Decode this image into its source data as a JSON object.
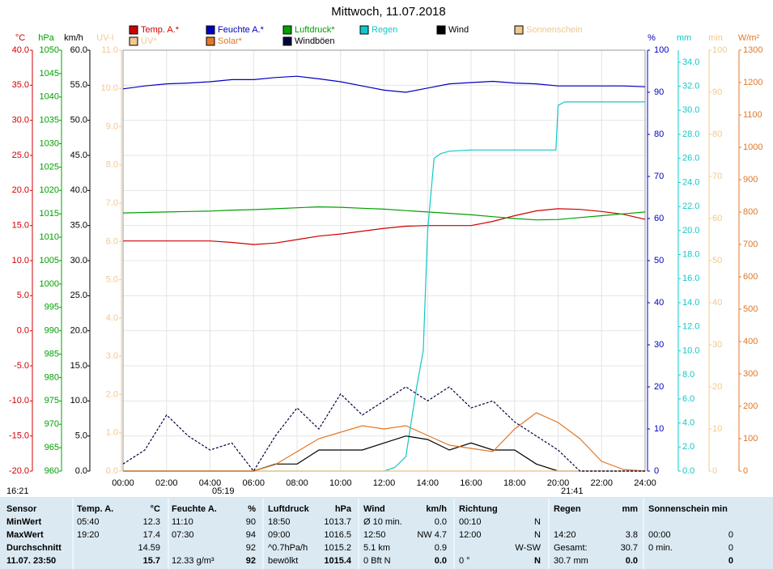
{
  "chart_data": {
    "type": "line",
    "title": "Mittwoch, 11.07.2018",
    "xlim": [
      0,
      24
    ],
    "xticks": [
      {
        "value": 0,
        "label": "00:00"
      },
      {
        "value": 2,
        "label": "02:00"
      },
      {
        "value": 4,
        "label": "04:00"
      },
      {
        "value": 6,
        "label": "06:00"
      },
      {
        "value": 8,
        "label": "08:00"
      },
      {
        "value": 10,
        "label": "10:00"
      },
      {
        "value": 12,
        "label": "12:00"
      },
      {
        "value": 14,
        "label": "14:00"
      },
      {
        "value": 16,
        "label": "16:00"
      },
      {
        "value": 18,
        "label": "18:00"
      },
      {
        "value": 20,
        "label": "20:00"
      },
      {
        "value": 22,
        "label": "22:00"
      },
      {
        "value": 24,
        "label": "24:00"
      }
    ],
    "grid": true,
    "axes": [
      {
        "label": "°C",
        "color": "#d00000",
        "lim": [
          -20,
          40
        ],
        "ticks": [
          {
            "value": 40,
            "label": "40.0"
          },
          {
            "value": 35,
            "label": "35.0"
          },
          {
            "value": 30,
            "label": "30.0"
          },
          {
            "value": 25,
            "label": "25.0"
          },
          {
            "value": 20,
            "label": "20.0"
          },
          {
            "value": 15,
            "label": "15.0"
          },
          {
            "value": 10,
            "label": "10.0"
          },
          {
            "value": 5,
            "label": "5.0"
          },
          {
            "value": 0,
            "label": "0.0"
          },
          {
            "value": -5,
            "label": "-5.0"
          },
          {
            "value": -10,
            "label": "-10.0"
          },
          {
            "value": -15,
            "label": "-15.0"
          },
          {
            "value": -20,
            "label": "-20.0"
          }
        ]
      },
      {
        "label": "hPa",
        "color": "#00a000",
        "lim": [
          960,
          1050
        ],
        "ticks": [
          1050,
          1045,
          1040,
          1035,
          1030,
          1025,
          1020,
          1015,
          1010,
          1005,
          1000,
          995,
          990,
          985,
          980,
          975,
          970,
          965,
          960
        ]
      },
      {
        "label": "km/h",
        "color": "#000000",
        "lim": [
          0,
          60
        ],
        "ticks": [
          {
            "value": 60,
            "label": "60.0"
          },
          {
            "value": 55,
            "label": "55.0"
          },
          {
            "value": 50,
            "label": "50.0"
          },
          {
            "value": 45,
            "label": "45.0"
          },
          {
            "value": 40,
            "label": "40.0"
          },
          {
            "value": 35,
            "label": "35.0"
          },
          {
            "value": 30,
            "label": "30.0"
          },
          {
            "value": 25,
            "label": "25.0"
          },
          {
            "value": 20,
            "label": "20.0"
          },
          {
            "value": 15,
            "label": "15.0"
          },
          {
            "value": 10,
            "label": "10.0"
          },
          {
            "value": 5,
            "label": "5.0"
          },
          {
            "value": 0,
            "label": "0.0"
          }
        ]
      },
      {
        "label": "UV-I",
        "color": "#f0c890",
        "lim": [
          0,
          11
        ],
        "ticks": [
          {
            "value": 11,
            "label": "11.0"
          },
          {
            "value": 10,
            "label": "10.0"
          },
          {
            "value": 9,
            "label": "9.0"
          },
          {
            "value": 8,
            "label": "8.0"
          },
          {
            "value": 7,
            "label": "7.0"
          },
          {
            "value": 6,
            "label": "6.0"
          },
          {
            "value": 5,
            "label": "5.0"
          },
          {
            "value": 4,
            "label": "4.0"
          },
          {
            "value": 3,
            "label": "3.0"
          },
          {
            "value": 2,
            "label": "2.0"
          },
          {
            "value": 1,
            "label": "1.0"
          },
          {
            "value": 0,
            "label": "0.0"
          }
        ]
      },
      {
        "label": "%",
        "color": "#0000c0",
        "lim": [
          0,
          100
        ],
        "ticks": [
          100,
          90,
          80,
          70,
          60,
          50,
          40,
          30,
          20,
          10,
          0
        ]
      },
      {
        "label": "mm",
        "color": "#10c8c8",
        "lim": [
          0,
          35
        ],
        "ticks": [
          {
            "value": 34,
            "label": "34.0"
          },
          {
            "value": 32,
            "label": "32.0"
          },
          {
            "value": 30,
            "label": "30.0"
          },
          {
            "value": 28,
            "label": "28.0"
          },
          {
            "value": 26,
            "label": "26.0"
          },
          {
            "value": 24,
            "label": "24.0"
          },
          {
            "value": 22,
            "label": "22.0"
          },
          {
            "value": 20,
            "label": "20.0"
          },
          {
            "value": 18,
            "label": "18.0"
          },
          {
            "value": 16,
            "label": "16.0"
          },
          {
            "value": 14,
            "label": "14.0"
          },
          {
            "value": 12,
            "label": "12.0"
          },
          {
            "value": 10,
            "label": "10.0"
          },
          {
            "value": 8,
            "label": "8.0"
          },
          {
            "value": 6,
            "label": "6.0"
          },
          {
            "value": 4,
            "label": "4.0"
          },
          {
            "value": 2,
            "label": "2.0"
          },
          {
            "value": 0,
            "label": "0.0"
          }
        ]
      },
      {
        "label": "min",
        "color": "#f0c890",
        "lim": [
          0,
          100
        ],
        "ticks": [
          100,
          90,
          80,
          70,
          60,
          50,
          40,
          30,
          20,
          10,
          0
        ]
      },
      {
        "label": "W/m²",
        "color": "#e07828",
        "lim": [
          0,
          1300
        ],
        "ticks": [
          1300,
          1200,
          1100,
          1000,
          900,
          800,
          700,
          600,
          500,
          400,
          300,
          200,
          100,
          0
        ]
      }
    ],
    "x": [
      0,
      1,
      2,
      3,
      4,
      5,
      6,
      7,
      8,
      9,
      10,
      11,
      12,
      13,
      14,
      15,
      16,
      17,
      18,
      19,
      20,
      21,
      22,
      23,
      24
    ],
    "series": [
      {
        "name": "Temp. A.*",
        "color": "#d00000",
        "axis": 0,
        "values": [
          12.8,
          12.8,
          12.8,
          12.8,
          12.8,
          12.6,
          12.3,
          12.5,
          13.0,
          13.5,
          13.8,
          14.2,
          14.6,
          14.9,
          15.0,
          15.0,
          15.0,
          15.6,
          16.4,
          17.1,
          17.4,
          17.3,
          17.0,
          16.6,
          15.9
        ]
      },
      {
        "name": "Feuchte A.*",
        "color": "#0000c0",
        "axis": 4,
        "values": [
          90.8,
          91.5,
          92.0,
          92.2,
          92.5,
          93.0,
          93.0,
          93.5,
          93.8,
          93.2,
          92.5,
          91.5,
          90.5,
          90.0,
          91.0,
          92.0,
          92.3,
          92.6,
          92.2,
          92.0,
          91.5,
          91.5,
          91.5,
          91.5,
          91.3
        ]
      },
      {
        "name": "Luftdruck*",
        "color": "#00a000",
        "axis": 1,
        "values": [
          1015.2,
          1015.3,
          1015.4,
          1015.5,
          1015.6,
          1015.8,
          1015.9,
          1016.1,
          1016.3,
          1016.5,
          1016.4,
          1016.2,
          1016.0,
          1015.7,
          1015.4,
          1015.1,
          1014.8,
          1014.4,
          1014.0,
          1013.7,
          1013.8,
          1014.2,
          1014.6,
          1015.0,
          1015.4
        ]
      },
      {
        "name": "Regen",
        "color": "#10c8c8",
        "axis": 5,
        "x": [
          0,
          12,
          12.5,
          13,
          13.5,
          13.8,
          14,
          14.3,
          14.6,
          15,
          16,
          17,
          18,
          19,
          19.9,
          20,
          20.3,
          24
        ],
        "values": [
          0,
          0,
          0.3,
          1.2,
          7,
          10,
          20,
          26,
          26.4,
          26.6,
          26.7,
          26.7,
          26.7,
          26.7,
          26.7,
          30.4,
          30.7,
          30.7
        ]
      },
      {
        "name": "Wind",
        "color": "#000000",
        "axis": 2,
        "values": [
          0,
          0,
          0,
          0,
          0,
          0,
          0,
          1,
          1,
          3,
          3,
          3,
          4,
          5,
          4.5,
          3,
          4,
          3,
          3,
          1,
          0,
          0,
          0,
          0,
          0
        ]
      },
      {
        "name": "Sonnenschein",
        "color": "#f0c890",
        "axis": 6,
        "values": [
          0,
          0,
          0,
          0,
          0,
          0,
          0,
          0,
          0,
          0,
          0,
          0,
          0,
          0,
          0,
          0,
          0,
          0,
          0,
          0,
          0,
          0,
          0,
          0,
          0
        ]
      },
      {
        "name": "UV*",
        "color": "#f0c890",
        "axis": 3,
        "values": [
          0,
          0,
          0,
          0,
          0,
          0,
          0,
          0,
          0,
          0,
          0,
          0,
          0,
          0,
          0,
          0,
          0,
          0,
          0,
          0,
          0,
          0,
          0,
          0,
          0
        ]
      },
      {
        "name": "Solar*",
        "color": "#e07828",
        "axis": 7,
        "values": [
          0,
          0,
          0,
          0,
          0,
          0,
          0,
          20,
          60,
          100,
          120,
          140,
          130,
          140,
          110,
          80,
          70,
          60,
          130,
          180,
          150,
          100,
          30,
          5,
          0
        ]
      },
      {
        "name": "Windböen",
        "color": "#000040",
        "axis": 2,
        "dash": true,
        "values": [
          1,
          3,
          8,
          5,
          3,
          4,
          0,
          5,
          9,
          6,
          11,
          8,
          10,
          12,
          10,
          12,
          9,
          10,
          7,
          5,
          3,
          0,
          0,
          0,
          0
        ]
      }
    ],
    "annotations": [
      "16:21",
      "05:19",
      "21:41"
    ]
  },
  "table": {
    "rows": [
      {
        "sensor": "Sensor",
        "temp_t": "Temp. A.",
        "temp_v": "°C",
        "hum_t": "Feuchte A.",
        "hum_v": "%",
        "pres_t": "Luftdruck",
        "pres_v": "hPa",
        "wind_t": "Wind",
        "wind_v": "km/h",
        "dir_t": "Richtung",
        "rain_t": "Regen",
        "rain_v": "mm",
        "sun_t": "Sonnenschein min"
      },
      {
        "sensor": "MinWert",
        "temp_t": "05:40",
        "temp_v": "12.3",
        "hum_t": "11:10",
        "hum_v": "90",
        "pres_t": "18:50",
        "pres_v": "1013.7",
        "wind_t": "Ø 10 min.",
        "wind_v": "0.0",
        "dir_t": "00:10",
        "dir_v": "N"
      },
      {
        "sensor": "MaxWert",
        "temp_t": "19:20",
        "temp_v": "17.4",
        "hum_t": "07:30",
        "hum_v": "94",
        "pres_t": "09:00",
        "pres_v": "1016.5",
        "wind_t": "12:50",
        "wind_v": "NW 4.7",
        "dir_t": "12:00",
        "dir_v": "N",
        "rain_t": "14:20",
        "rain_v": "3.8",
        "sun_t": "00:00",
        "sun_v": "0"
      },
      {
        "sensor": "Durchschnitt",
        "temp_v": "14.59",
        "hum_v": "92",
        "pres_t": "^0.7hPa/h",
        "pres_v": "1015.2",
        "wind_t": "5.1 km",
        "wind_v": "0.9",
        "dir_v": "W-SW",
        "rain_t": "Gesamt:",
        "rain_v": "30.7",
        "sun_t": "0 min.",
        "sun_v": "0"
      },
      {
        "sensor": "11.07. 23:50",
        "temp_v": "15.7",
        "hum_t": "12.33 g/m³",
        "hum_v": "92",
        "pres_t": "bewölkt",
        "pres_v": "1015.4",
        "wind_t": "0 Bft N",
        "wind_v": "0.0",
        "dir_t": "0 °",
        "dir_v": "N",
        "rain_t": "30.7 mm",
        "rain_v": "0.0",
        "sun_v": "0"
      }
    ]
  }
}
